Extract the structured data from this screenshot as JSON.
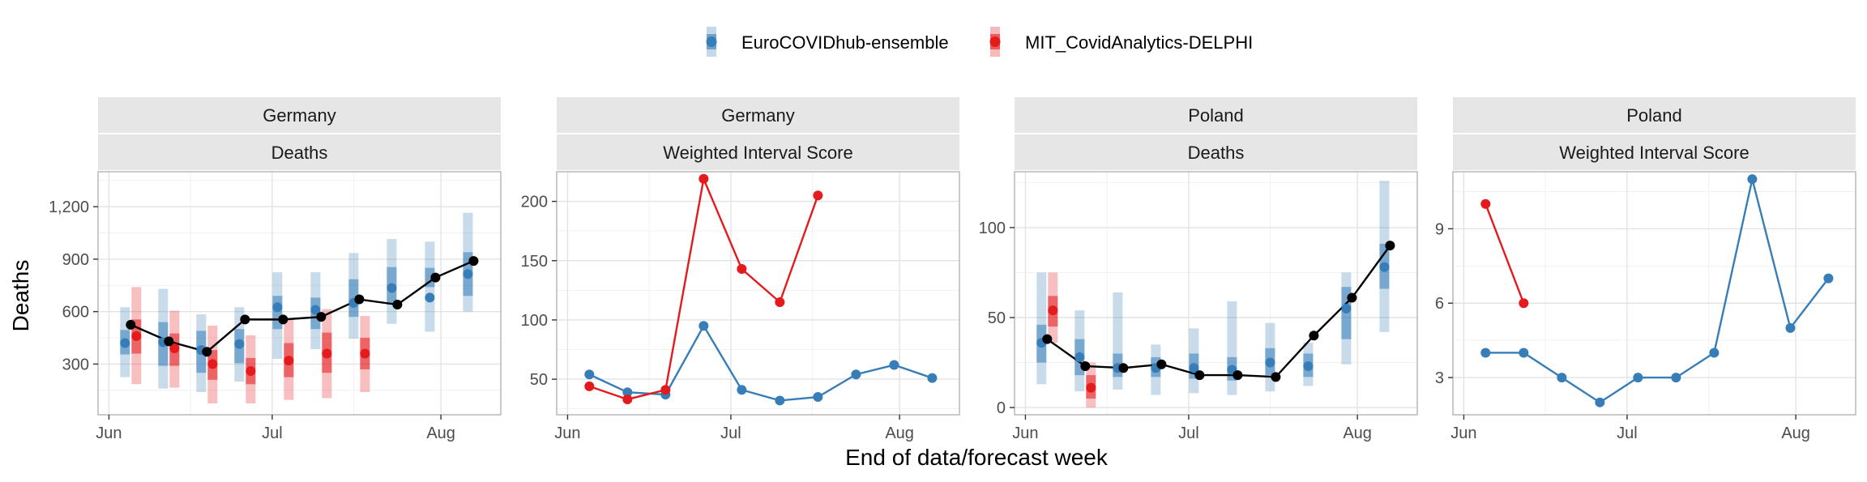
{
  "colors": {
    "ensemble": "#377eb8",
    "delphi": "#e41a1c",
    "observed": "#000000",
    "strip_bg": "#e6e6e6",
    "grid_major": "#e3e3e3",
    "grid_minor": "#f1f1f1",
    "panel_border": "#b3b3b3"
  },
  "legend": {
    "position": "top-center",
    "entries": [
      {
        "key": "ensemble",
        "label": "EuroCOVIDhub-ensemble"
      },
      {
        "key": "delphi",
        "label": "MIT_CovidAnalytics-DELPHI"
      }
    ]
  },
  "axes": {
    "x_title": "End of data/forecast week",
    "y_title": "Deaths"
  },
  "chart_data": [
    {
      "type": "line",
      "location": "Germany",
      "metric": "Deaths",
      "xlim": [
        "2021-05-30",
        "2021-08-12"
      ],
      "ylim": [
        10,
        1400
      ],
      "x_ticks": [
        {
          "date": "2021-06-01",
          "label": "Jun"
        },
        {
          "date": "2021-07-01",
          "label": "Jul"
        },
        {
          "date": "2021-08-01",
          "label": "Aug"
        }
      ],
      "y_ticks": [
        {
          "value": 300,
          "label": "300"
        },
        {
          "value": 600,
          "label": "600"
        },
        {
          "value": 900,
          "label": "900"
        },
        {
          "value": 1200,
          "label": "1,200"
        }
      ],
      "observed": {
        "x": [
          "2021-06-05",
          "2021-06-12",
          "2021-06-19",
          "2021-06-26",
          "2021-07-03",
          "2021-07-10",
          "2021-07-17",
          "2021-07-24",
          "2021-07-31",
          "2021-08-07"
        ],
        "y": [
          525,
          430,
          370,
          555,
          555,
          570,
          670,
          640,
          795,
          890
        ]
      },
      "forecasts": [
        {
          "model": "ensemble",
          "points": [
            {
              "x": "2021-06-05",
              "median": 420,
              "inner": [
                355,
                495
              ],
              "outer": [
                225,
                625
              ]
            },
            {
              "x": "2021-06-12",
              "median": 425,
              "inner": [
                290,
                540
              ],
              "outer": [
                160,
                730
              ]
            },
            {
              "x": "2021-06-19",
              "median": 380,
              "inner": [
                250,
                490
              ],
              "outer": [
                140,
                585
              ]
            },
            {
              "x": "2021-06-26",
              "median": 415,
              "inner": [
                305,
                500
              ],
              "outer": [
                200,
                625
              ]
            },
            {
              "x": "2021-07-03",
              "median": 625,
              "inner": [
                500,
                690
              ],
              "outer": [
                330,
                825
              ]
            },
            {
              "x": "2021-07-10",
              "median": 610,
              "inner": [
                500,
                680
              ],
              "outer": [
                385,
                825
              ]
            },
            {
              "x": "2021-07-17",
              "median": 650,
              "inner": [
                570,
                785
              ],
              "outer": [
                445,
                935
              ]
            },
            {
              "x": "2021-07-24",
              "median": 735,
              "inner": [
                640,
                855
              ],
              "outer": [
                530,
                1015
              ]
            },
            {
              "x": "2021-07-31",
              "median": 680,
              "inner": [
                740,
                850
              ],
              "outer": [
                485,
                1000
              ]
            },
            {
              "x": "2021-08-07",
              "median": 815,
              "inner": [
                690,
                940
              ],
              "outer": [
                600,
                1165
              ]
            }
          ]
        },
        {
          "model": "delphi",
          "points": [
            {
              "x": "2021-06-05",
              "median": 460,
              "inner": [
                360,
                555
              ],
              "outer": [
                185,
                740
              ]
            },
            {
              "x": "2021-06-12",
              "median": 390,
              "inner": [
                290,
                475
              ],
              "outer": [
                165,
                605
              ]
            },
            {
              "x": "2021-06-19",
              "median": 300,
              "inner": [
                210,
                380
              ],
              "outer": [
                75,
                520
              ]
            },
            {
              "x": "2021-06-26",
              "median": 260,
              "inner": [
                185,
                335
              ],
              "outer": [
                75,
                465
              ]
            },
            {
              "x": "2021-07-03",
              "median": 320,
              "inner": [
                225,
                420
              ],
              "outer": [
                95,
                560
              ]
            },
            {
              "x": "2021-07-10",
              "median": 360,
              "inner": [
                250,
                480
              ],
              "outer": [
                105,
                615
              ]
            },
            {
              "x": "2021-07-17",
              "median": 360,
              "inner": [
                270,
                450
              ],
              "outer": [
                140,
                575
              ]
            }
          ]
        }
      ]
    },
    {
      "type": "line",
      "location": "Germany",
      "metric": "Weighted Interval Score",
      "xlim": [
        "2021-05-30",
        "2021-08-12"
      ],
      "ylim": [
        20,
        225
      ],
      "x_ticks": [
        {
          "date": "2021-06-01",
          "label": "Jun"
        },
        {
          "date": "2021-07-01",
          "label": "Jul"
        },
        {
          "date": "2021-08-01",
          "label": "Aug"
        }
      ],
      "y_ticks": [
        {
          "value": 50,
          "label": "50"
        },
        {
          "value": 100,
          "label": "100"
        },
        {
          "value": 150,
          "label": "150"
        },
        {
          "value": 200,
          "label": "200"
        }
      ],
      "series": [
        {
          "model": "ensemble",
          "x": [
            "2021-06-05",
            "2021-06-12",
            "2021-06-19",
            "2021-06-26",
            "2021-07-03",
            "2021-07-10",
            "2021-07-17",
            "2021-07-24",
            "2021-07-31",
            "2021-08-07"
          ],
          "y": [
            54,
            39,
            37,
            95,
            41,
            32,
            35,
            54,
            62,
            51
          ]
        },
        {
          "model": "delphi",
          "x": [
            "2021-06-05",
            "2021-06-12",
            "2021-06-19",
            "2021-06-26",
            "2021-07-03",
            "2021-07-10",
            "2021-07-17"
          ],
          "y": [
            44,
            33,
            41,
            219,
            143,
            115,
            205
          ]
        }
      ]
    },
    {
      "type": "line",
      "location": "Poland",
      "metric": "Deaths",
      "xlim": [
        "2021-05-30",
        "2021-08-12"
      ],
      "ylim": [
        -4,
        131
      ],
      "x_ticks": [
        {
          "date": "2021-06-01",
          "label": "Jun"
        },
        {
          "date": "2021-07-01",
          "label": "Jul"
        },
        {
          "date": "2021-08-01",
          "label": "Aug"
        }
      ],
      "y_ticks": [
        {
          "value": 0,
          "label": "0"
        },
        {
          "value": 50,
          "label": "50"
        },
        {
          "value": 100,
          "label": "100"
        }
      ],
      "observed": {
        "x": [
          "2021-06-05",
          "2021-06-12",
          "2021-06-19",
          "2021-06-26",
          "2021-07-03",
          "2021-07-10",
          "2021-07-17",
          "2021-07-24",
          "2021-07-31",
          "2021-08-07"
        ],
        "y": [
          38,
          23,
          22,
          24,
          18,
          18,
          17,
          40,
          61,
          90
        ]
      },
      "forecasts": [
        {
          "model": "ensemble",
          "points": [
            {
              "x": "2021-06-05",
              "median": 36,
              "inner": [
                25,
                46
              ],
              "outer": [
                13,
                75
              ]
            },
            {
              "x": "2021-06-12",
              "median": 28,
              "inner": [
                18,
                38
              ],
              "outer": [
                9,
                54
              ]
            },
            {
              "x": "2021-06-19",
              "median": 22,
              "inner": [
                17,
                30
              ],
              "outer": [
                10,
                64
              ]
            },
            {
              "x": "2021-06-26",
              "median": 22,
              "inner": [
                17,
                28
              ],
              "outer": [
                7,
                35
              ]
            },
            {
              "x": "2021-07-03",
              "median": 22,
              "inner": [
                16,
                30
              ],
              "outer": [
                8,
                44
              ]
            },
            {
              "x": "2021-07-10",
              "median": 21,
              "inner": [
                15,
                28
              ],
              "outer": [
                7,
                59
              ]
            },
            {
              "x": "2021-07-17",
              "median": 25,
              "inner": [
                18,
                33
              ],
              "outer": [
                9,
                47
              ]
            },
            {
              "x": "2021-07-24",
              "median": 23,
              "inner": [
                17,
                30
              ],
              "outer": [
                12,
                36
              ]
            },
            {
              "x": "2021-07-31",
              "median": 55,
              "inner": [
                38,
                67
              ],
              "outer": [
                24,
                75
              ]
            },
            {
              "x": "2021-08-07",
              "median": 78,
              "inner": [
                66,
                91
              ],
              "outer": [
                42,
                126
              ]
            }
          ]
        },
        {
          "model": "delphi",
          "points": [
            {
              "x": "2021-06-05",
              "median": 54,
              "inner": [
                45,
                62
              ],
              "outer": [
                36,
                75
              ]
            },
            {
              "x": "2021-06-12",
              "median": 11,
              "inner": [
                5,
                18
              ],
              "outer": [
                0,
                25
              ]
            }
          ]
        }
      ]
    },
    {
      "type": "line",
      "location": "Poland",
      "metric": "Weighted Interval Score",
      "xlim": [
        "2021-05-30",
        "2021-08-12"
      ],
      "ylim": [
        1.5,
        11.3
      ],
      "x_ticks": [
        {
          "date": "2021-06-01",
          "label": "Jun"
        },
        {
          "date": "2021-07-01",
          "label": "Jul"
        },
        {
          "date": "2021-08-01",
          "label": "Aug"
        }
      ],
      "y_ticks": [
        {
          "value": 3,
          "label": "3"
        },
        {
          "value": 6,
          "label": "6"
        },
        {
          "value": 9,
          "label": "9"
        }
      ],
      "series": [
        {
          "model": "ensemble",
          "x": [
            "2021-06-05",
            "2021-06-12",
            "2021-06-19",
            "2021-06-26",
            "2021-07-03",
            "2021-07-10",
            "2021-07-17",
            "2021-07-24",
            "2021-07-31",
            "2021-08-07"
          ],
          "y": [
            4,
            4,
            3,
            2,
            3,
            3,
            4,
            11,
            5,
            7
          ]
        },
        {
          "model": "delphi",
          "x": [
            "2021-06-05",
            "2021-06-12"
          ],
          "y": [
            10,
            6
          ]
        }
      ]
    }
  ]
}
